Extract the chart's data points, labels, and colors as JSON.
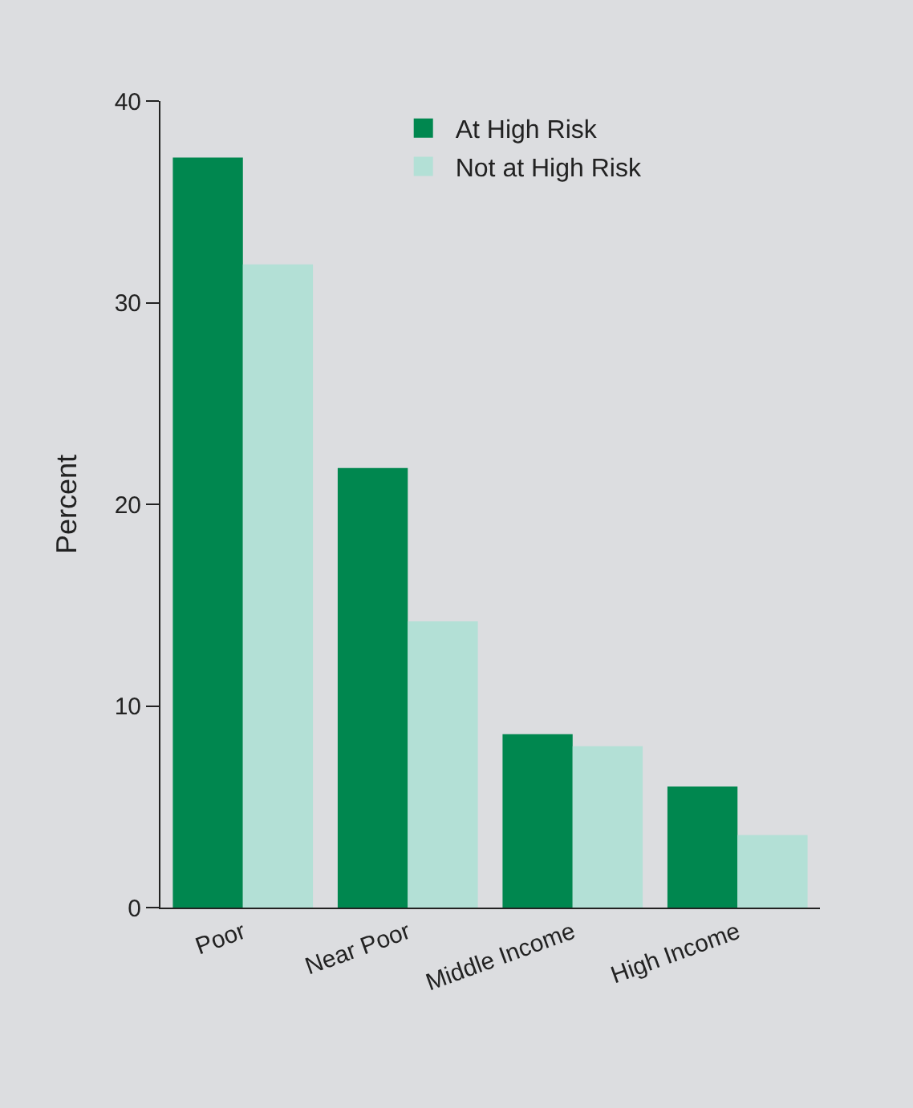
{
  "chart_data": {
    "type": "bar",
    "ylabel": "Percent",
    "categories": [
      "Poor",
      "Near Poor",
      "Middle Income",
      "High Income"
    ],
    "series": [
      {
        "name": "At High Risk",
        "color": "#00874f",
        "values": [
          37.2,
          21.8,
          8.6,
          6.0
        ]
      },
      {
        "name": "Not at High Risk",
        "color": "#b3e0d6",
        "values": [
          31.9,
          14.2,
          8.0,
          3.6
        ]
      }
    ],
    "ylim": [
      0,
      40
    ],
    "yticks": [
      0,
      10,
      20,
      30,
      40
    ],
    "grid": false,
    "legend": "top right"
  }
}
